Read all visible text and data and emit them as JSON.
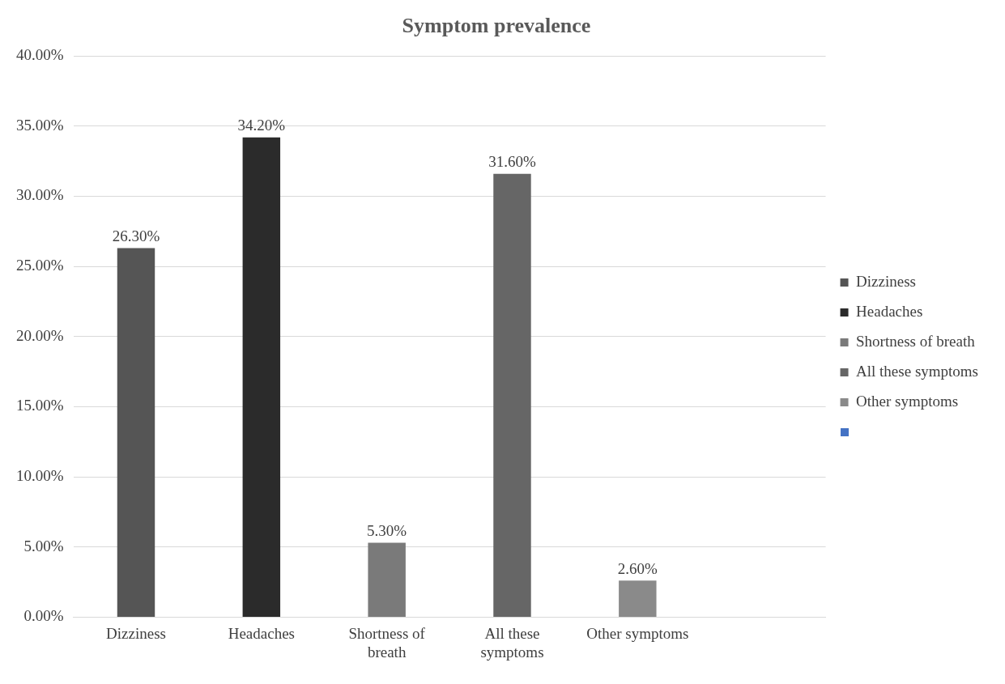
{
  "chart_data": {
    "type": "bar",
    "title": "Symptom prevalence",
    "categories": [
      "Dizziness",
      "Headaches",
      "Shortness of breath",
      "All these symptoms",
      "Other symptoms",
      null
    ],
    "series": [
      {
        "name": "Dizziness",
        "color": "#555555",
        "values": [
          26.3,
          null,
          null,
          null,
          null,
          null
        ],
        "value_labels": [
          "26.30%",
          null,
          null,
          null,
          null,
          null
        ]
      },
      {
        "name": "Headaches",
        "color": "#2b2b2b",
        "values": [
          null,
          34.2,
          null,
          null,
          null,
          null
        ],
        "value_labels": [
          null,
          "34.20%",
          null,
          null,
          null,
          null
        ]
      },
      {
        "name": "Shortness of breath",
        "color": "#7a7a7a",
        "values": [
          null,
          null,
          5.3,
          null,
          null,
          null
        ],
        "value_labels": [
          null,
          null,
          "5.30%",
          null,
          null,
          null
        ]
      },
      {
        "name": "All these symptoms",
        "color": "#666666",
        "values": [
          null,
          null,
          null,
          31.6,
          null,
          null
        ],
        "value_labels": [
          null,
          null,
          null,
          "31.60%",
          null,
          null
        ]
      },
      {
        "name": "Other symptoms",
        "color": "#8a8a8a",
        "values": [
          null,
          null,
          null,
          null,
          2.6,
          null
        ],
        "value_labels": [
          null,
          null,
          null,
          null,
          "2.60%",
          null
        ]
      }
    ],
    "ylim": [
      0,
      40
    ],
    "yticks": [
      {
        "value": 0,
        "label": "0.00%"
      },
      {
        "value": 5,
        "label": "5.00%"
      },
      {
        "value": 10,
        "label": "10.00%"
      },
      {
        "value": 15,
        "label": "15.00%"
      },
      {
        "value": 20,
        "label": "20.00%"
      },
      {
        "value": 25,
        "label": "25.00%"
      },
      {
        "value": 30,
        "label": "30.00%"
      },
      {
        "value": 35,
        "label": "35.00%"
      },
      {
        "value": 40,
        "label": "40.00%"
      }
    ],
    "grid": "y",
    "legend": "right"
  }
}
